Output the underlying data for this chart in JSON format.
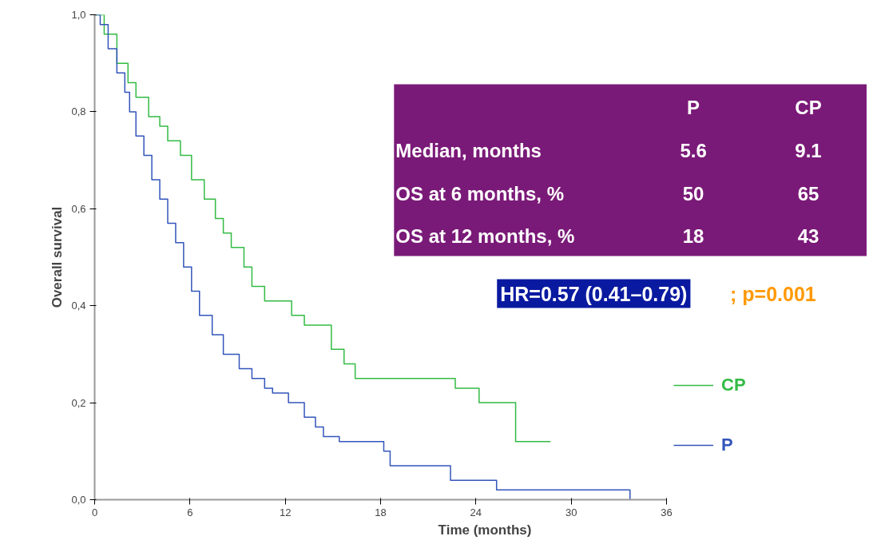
{
  "chart_data": {
    "type": "step",
    "xlabel": "Time (months)",
    "ylabel": "Overall survival",
    "xlim": [
      0,
      36
    ],
    "xticks": [
      0,
      6,
      12,
      18,
      24,
      30,
      36
    ],
    "ylim": [
      0,
      1.0
    ],
    "yticks": [
      {
        "value": 0,
        "label": "0,0"
      },
      {
        "value": 0.2,
        "label": "0,2"
      },
      {
        "value": 0.4,
        "label": "0,4"
      },
      {
        "value": 0.6,
        "label": "0,6"
      },
      {
        "value": 0.8,
        "label": "0,8"
      },
      {
        "value": 1.0,
        "label": "1,0"
      }
    ],
    "grid": false,
    "legend": "right",
    "series": [
      {
        "name": "CP",
        "color": "#33bb44",
        "x": [
          0,
          0.6,
          1.4,
          2.1,
          2.6,
          3.4,
          4.1,
          4.6,
          5.4,
          6.1,
          6.9,
          7.6,
          8.1,
          8.6,
          9.4,
          9.9,
          10.7,
          12.4,
          13.2,
          14.9,
          15.7,
          16.4,
          22.7,
          24.2,
          26.5,
          28.7
        ],
        "values": [
          1.0,
          0.96,
          0.9,
          0.86,
          0.83,
          0.79,
          0.77,
          0.74,
          0.71,
          0.66,
          0.62,
          0.58,
          0.55,
          0.52,
          0.48,
          0.44,
          0.41,
          0.38,
          0.36,
          0.31,
          0.28,
          0.25,
          0.23,
          0.2,
          0.12,
          0.12
        ]
      },
      {
        "name": "P",
        "color": "#3355bb",
        "x": [
          0,
          0.35,
          0.85,
          1.4,
          1.9,
          2.2,
          2.6,
          3.1,
          3.6,
          4.1,
          4.6,
          5.1,
          5.6,
          6.1,
          6.6,
          7.4,
          8.1,
          9.1,
          9.9,
          10.7,
          11.2,
          12.2,
          13.2,
          13.9,
          14.4,
          15.4,
          18.2,
          18.6,
          22.4,
          25.3,
          33.7,
          33.7
        ],
        "values": [
          1.0,
          0.98,
          0.93,
          0.88,
          0.84,
          0.8,
          0.75,
          0.71,
          0.66,
          0.62,
          0.57,
          0.53,
          0.48,
          0.43,
          0.38,
          0.34,
          0.3,
          0.27,
          0.25,
          0.23,
          0.22,
          0.2,
          0.17,
          0.15,
          0.13,
          0.12,
          0.1,
          0.07,
          0.04,
          0.02,
          0.02,
          0
        ]
      }
    ],
    "annotations": [
      "P",
      "CP",
      "Median, months",
      "5.6",
      "9.1",
      "OS at 6 months, %",
      "50",
      "65",
      "OS at 12 months, %",
      "18",
      "43",
      "HR=0.57 (0.41–0.79)",
      "; p=0.001"
    ]
  }
}
